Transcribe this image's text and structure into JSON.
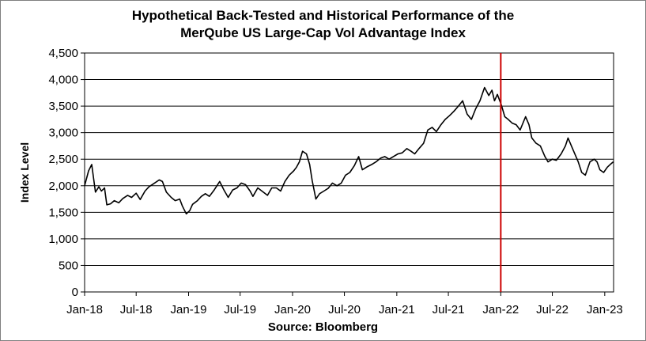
{
  "chart_data": {
    "type": "line",
    "title": [
      "Hypothetical Back-Tested and Historical Performance of the",
      "MerQube US Large-Cap Vol Advantage Index"
    ],
    "xlabel": "Source: Bloomberg",
    "ylabel": "Index Level",
    "ylim": [
      0,
      4500
    ],
    "yticks": [
      0,
      500,
      1000,
      1500,
      2000,
      2500,
      3000,
      3500,
      4000,
      4500
    ],
    "ytick_labels": [
      "0",
      "500",
      "1,000",
      "1,500",
      "2,000",
      "2,500",
      "3,000",
      "3,500",
      "4,000",
      "4,500"
    ],
    "xlim": [
      "2018-01-01",
      "2023-02-01"
    ],
    "xticks": [
      "2018-01-01",
      "2018-07-01",
      "2019-01-01",
      "2019-07-01",
      "2020-01-01",
      "2020-07-01",
      "2021-01-01",
      "2021-07-01",
      "2022-01-01",
      "2022-07-01",
      "2023-01-01"
    ],
    "xtick_labels": [
      "Jan-18",
      "Jul-18",
      "Jan-19",
      "Jul-19",
      "Jan-20",
      "Jul-20",
      "Jan-21",
      "Jul-21",
      "Jan-22",
      "Jul-22",
      "Jan-23"
    ],
    "grid": "horizontal",
    "line_color": "#000000",
    "marker_line": {
      "x": "2022-01-01",
      "color": "#cc0000"
    },
    "series": [
      {
        "x": [
          "2018-01-01",
          "2018-01-15",
          "2018-01-26",
          "2018-02-08",
          "2018-02-20",
          "2018-03-01",
          "2018-03-12",
          "2018-03-20",
          "2018-04-02",
          "2018-04-15",
          "2018-05-01",
          "2018-05-15",
          "2018-06-01",
          "2018-06-15",
          "2018-07-01",
          "2018-07-15",
          "2018-08-01",
          "2018-08-15",
          "2018-09-01",
          "2018-09-20",
          "2018-10-01",
          "2018-10-15",
          "2018-11-01",
          "2018-11-15",
          "2018-12-01",
          "2018-12-10",
          "2018-12-24",
          "2019-01-05",
          "2019-01-15",
          "2019-02-01",
          "2019-02-15",
          "2019-03-01",
          "2019-03-15",
          "2019-04-01",
          "2019-04-20",
          "2019-05-05",
          "2019-05-20",
          "2019-06-05",
          "2019-06-20",
          "2019-07-05",
          "2019-07-20",
          "2019-08-05",
          "2019-08-15",
          "2019-09-01",
          "2019-09-20",
          "2019-10-05",
          "2019-10-20",
          "2019-11-05",
          "2019-11-20",
          "2019-12-05",
          "2019-12-20",
          "2020-01-05",
          "2020-01-15",
          "2020-01-25",
          "2020-02-05",
          "2020-02-19",
          "2020-03-01",
          "2020-03-10",
          "2020-03-23",
          "2020-04-05",
          "2020-04-20",
          "2020-05-05",
          "2020-05-20",
          "2020-06-05",
          "2020-06-20",
          "2020-07-05",
          "2020-07-20",
          "2020-08-05",
          "2020-08-20",
          "2020-09-02",
          "2020-09-20",
          "2020-10-05",
          "2020-10-20",
          "2020-11-05",
          "2020-11-20",
          "2020-12-05",
          "2020-12-20",
          "2021-01-05",
          "2021-01-20",
          "2021-02-05",
          "2021-02-20",
          "2021-03-05",
          "2021-03-20",
          "2021-04-05",
          "2021-04-20",
          "2021-05-05",
          "2021-05-20",
          "2021-06-05",
          "2021-06-20",
          "2021-07-05",
          "2021-07-20",
          "2021-08-05",
          "2021-08-20",
          "2021-09-05",
          "2021-09-20",
          "2021-10-05",
          "2021-10-20",
          "2021-11-05",
          "2021-11-20",
          "2021-12-01",
          "2021-12-10",
          "2021-12-20",
          "2022-01-03",
          "2022-01-15",
          "2022-01-27",
          "2022-02-10",
          "2022-02-24",
          "2022-03-10",
          "2022-03-29",
          "2022-04-10",
          "2022-04-20",
          "2022-05-05",
          "2022-05-20",
          "2022-06-05",
          "2022-06-16",
          "2022-07-01",
          "2022-07-15",
          "2022-08-01",
          "2022-08-16",
          "2022-08-25",
          "2022-09-10",
          "2022-09-30",
          "2022-10-12",
          "2022-10-25",
          "2022-11-10",
          "2022-11-25",
          "2022-12-05",
          "2022-12-15",
          "2022-12-28",
          "2023-01-10",
          "2023-01-20",
          "2023-01-31"
        ],
        "values": [
          2000,
          2280,
          2400,
          1880,
          1980,
          1900,
          1960,
          1640,
          1660,
          1720,
          1680,
          1760,
          1820,
          1780,
          1860,
          1740,
          1900,
          1980,
          2040,
          2110,
          2080,
          1880,
          1780,
          1720,
          1750,
          1620,
          1470,
          1530,
          1650,
          1720,
          1800,
          1850,
          1800,
          1920,
          2080,
          1920,
          1780,
          1920,
          1960,
          2050,
          2020,
          1900,
          1800,
          1960,
          1880,
          1820,
          1960,
          1960,
          1900,
          2080,
          2200,
          2280,
          2350,
          2450,
          2650,
          2600,
          2400,
          2100,
          1750,
          1850,
          1900,
          1950,
          2050,
          2000,
          2050,
          2200,
          2250,
          2380,
          2550,
          2300,
          2360,
          2400,
          2450,
          2520,
          2550,
          2500,
          2550,
          2600,
          2620,
          2700,
          2650,
          2600,
          2700,
          2800,
          3050,
          3100,
          3020,
          3150,
          3250,
          3320,
          3400,
          3500,
          3600,
          3350,
          3250,
          3450,
          3600,
          3850,
          3700,
          3800,
          3600,
          3720,
          3520,
          3300,
          3250,
          3180,
          3150,
          3050,
          3300,
          3150,
          2900,
          2800,
          2750,
          2550,
          2450,
          2500,
          2480,
          2600,
          2750,
          2900,
          2700,
          2450,
          2250,
          2200,
          2450,
          2500,
          2450,
          2300,
          2250,
          2350,
          2400,
          2450
        ]
      }
    ]
  }
}
